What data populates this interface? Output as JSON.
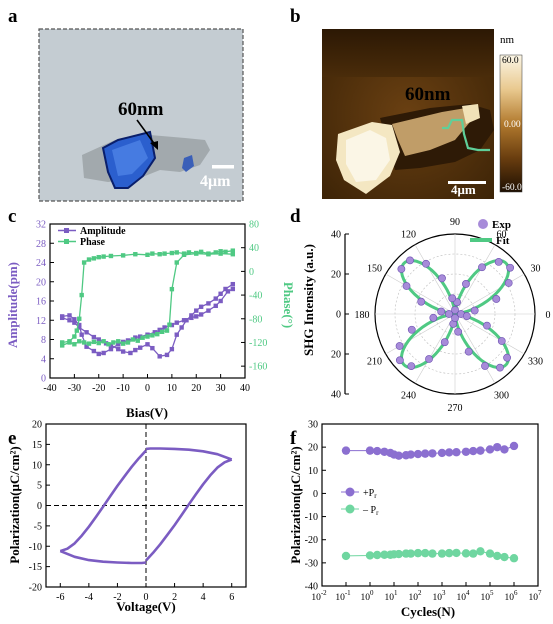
{
  "panels": {
    "a": {
      "letter": "a",
      "annotation": "60nm",
      "scale_bar": "4μm",
      "colors": {
        "background": "#c4ccd2",
        "flake": "#2b5fce",
        "flake_edge": "#0a1f6b",
        "substrate_flake": "#9ea5a8"
      }
    },
    "b": {
      "letter": "b",
      "annotation": "60nm",
      "scale_bar": "4μm",
      "colorbar": {
        "unit": "nm",
        "ticks": [
          "60.0",
          "0.00",
          "-60.0"
        ]
      },
      "colors": {
        "profile": "#5fcf99",
        "dark": "#3a2206",
        "bright": "#f7eed0",
        "mid": "#b07a32"
      }
    },
    "c": {
      "letter": "c",
      "chart_data": {
        "type": "scatter",
        "xlabel": "Bias(V)",
        "ylabel_left": "Amplitude(pm)",
        "ylabel_right": "Phase(°)",
        "xlim": [
          -40,
          40
        ],
        "ylim_left": [
          0,
          32
        ],
        "ylim_right": [
          -180,
          80
        ],
        "xticks": [
          "-40",
          "-30",
          "-20",
          "-10",
          "0",
          "10",
          "20",
          "30",
          "40"
        ],
        "yticks_left": [
          "0",
          "4",
          "8",
          "12",
          "16",
          "20",
          "24",
          "28",
          "32"
        ],
        "yticks_right": [
          "-160",
          "-120",
          "-80",
          "-40",
          "0",
          "40",
          "80"
        ],
        "legend": [
          {
            "name": "Amplitude",
            "color": "#7b5cc2"
          },
          {
            "name": "Phase",
            "color": "#4fc983"
          }
        ],
        "series": [
          {
            "name": "Amplitude",
            "axis": "left",
            "color": "#7b5cc2",
            "x": [
              -35,
              -32,
              -30,
              -28,
              -25,
              -22,
              -20,
              -17,
              -15,
              -12,
              -10,
              -7,
              -5,
              -3,
              0,
              2,
              5,
              8,
              10,
              12,
              14,
              16,
              18,
              20,
              22,
              25,
              28,
              30,
              32,
              35
            ],
            "y": [
              12.5,
              12,
              11.5,
              10.5,
              9.5,
              8.5,
              8,
              7.2,
              6.8,
              6,
              5.5,
              5.2,
              5.8,
              6.3,
              7,
              6.2,
              4.5,
              4.8,
              6,
              9,
              10.5,
              12,
              13,
              14,
              14.8,
              15.5,
              16.5,
              17.5,
              18.5,
              19.5
            ]
          },
          {
            "name": "Amplitude",
            "axis": "left",
            "color": "#7b5cc2",
            "x": [
              35,
              33,
              30,
              28,
              25,
              22,
              20,
              18,
              15,
              12,
              10,
              7,
              5,
              3,
              0,
              -3,
              -5,
              -8,
              -10,
              -12,
              -15,
              -18,
              -20,
              -22,
              -25,
              -27,
              -28,
              -30,
              -32,
              -35
            ],
            "y": [
              18.5,
              18,
              16,
              15,
              14,
              13.2,
              12.8,
              12.5,
              12,
              11.5,
              11,
              10.5,
              10,
              9.5,
              9,
              8.6,
              8.4,
              7.8,
              7.5,
              7,
              6,
              5.2,
              5,
              5.6,
              6.5,
              9,
              11,
              12.2,
              13,
              12.8
            ]
          },
          {
            "name": "Phase",
            "axis": "right",
            "color": "#4fc983",
            "x": [
              -35,
              -32,
              -30,
              -28,
              -26,
              -24,
              -22,
              -20,
              -18,
              -16,
              -14,
              -12,
              -10,
              -8,
              -6,
              -4,
              -2,
              0,
              2,
              4,
              6,
              8,
              9,
              10,
              12,
              15,
              20,
              25,
              30,
              35
            ],
            "y": [
              -125,
              -120,
              -123,
              -118,
              -120,
              -122,
              -119,
              -121,
              -118,
              -123,
              -120,
              -118,
              -122,
              -120,
              -115,
              -117,
              -112,
              -110,
              -108,
              -106,
              -102,
              -100,
              -90,
              -30,
              15,
              28,
              30,
              29,
              30,
              29
            ]
          },
          {
            "name": "Phase",
            "axis": "right",
            "color": "#4fc983",
            "x": [
              35,
              32,
              30,
              28,
              25,
              22,
              20,
              17,
              15,
              12,
              10,
              7,
              5,
              2,
              0,
              -5,
              -10,
              -15,
              -18,
              -20,
              -22,
              -24,
              -26,
              -27,
              -28,
              -29,
              -30,
              -32,
              -35
            ],
            "y": [
              35,
              33,
              34,
              32,
              30,
              33,
              31,
              32,
              30,
              32,
              31,
              30,
              29,
              30,
              28,
              29,
              27,
              26,
              25,
              24,
              22,
              20,
              15,
              -40,
              -80,
              -100,
              -110,
              -118,
              -120
            ]
          }
        ]
      }
    },
    "d": {
      "letter": "d",
      "chart_data": {
        "type": "polar",
        "ylabel": "SHG Intensity (a.u.)",
        "rlim": [
          0,
          40
        ],
        "rticks": [
          "40",
          "20",
          "0",
          "20",
          "40"
        ],
        "angle_ticks": [
          "0",
          "30",
          "60",
          "90",
          "120",
          "150",
          "180",
          "210",
          "240",
          "270",
          "300",
          "330"
        ],
        "legend": [
          {
            "name": "Exp",
            "color": "#a78bd9"
          },
          {
            "name": "Fit",
            "color": "#4fc983"
          }
        ],
        "lobes_deg": [
          45,
          135,
          225,
          315
        ],
        "peak_intensity": 36,
        "exp_angles_deg": [
          0,
          10,
          20,
          30,
          40,
          50,
          60,
          70,
          80,
          90,
          100,
          110,
          120,
          130,
          140,
          150,
          160,
          170,
          180,
          190,
          200,
          210,
          220,
          230,
          240,
          250,
          260,
          270,
          280,
          290,
          300,
          310,
          320,
          330,
          340,
          350
        ],
        "exp_intensity": [
          3,
          10,
          22,
          31,
          36,
          34,
          27,
          16,
          6,
          2,
          8,
          19,
          29,
          35,
          35,
          28,
          18,
          7,
          3,
          11,
          23,
          32,
          36,
          34,
          26,
          15,
          5,
          2,
          9,
          20,
          30,
          35,
          34,
          27,
          17,
          6
        ]
      }
    },
    "e": {
      "letter": "e",
      "chart_data": {
        "type": "line",
        "xlabel": "Voltage(V)",
        "ylabel": "Polarization(μC/cm²)",
        "xlim": [
          -7,
          7
        ],
        "ylim": [
          -20,
          20
        ],
        "xticks": [
          "-6",
          "-4",
          "-2",
          "0",
          "2",
          "4",
          "6"
        ],
        "yticks": [
          "-20",
          "-15",
          "-10",
          "-5",
          "0",
          "5",
          "10",
          "15",
          "20"
        ],
        "color": "#7b5cc2",
        "series": [
          {
            "name": "",
            "x": [
              -6,
              -5,
              -4,
              -3,
              -2,
              -1,
              -0.3,
              0
            ],
            "y": [
              -11.2,
              -12.6,
              -13.4,
              -13.8,
              -14,
              -14.1,
              -14.1,
              -14
            ]
          },
          {
            "name": "",
            "x": [
              0,
              0.5,
              1,
              1.5,
              2,
              2.5,
              3,
              3.5,
              4,
              4.5,
              5,
              5.5,
              6
            ],
            "y": [
              -13.5,
              -11.6,
              -9.5,
              -7.2,
              -4.8,
              -2.3,
              0.3,
              2.8,
              5.2,
              7.4,
              9.3,
              10.6,
              11.3
            ]
          },
          {
            "name": "",
            "x": [
              6,
              5,
              4,
              3,
              2,
              1,
              0.3,
              0
            ],
            "y": [
              11.3,
              12.6,
              13.3,
              13.7,
              13.9,
              14,
              14,
              13.9
            ]
          },
          {
            "name": "",
            "x": [
              0,
              -0.5,
              -1,
              -1.5,
              -2,
              -2.5,
              -3,
              -3.5,
              -4,
              -4.5,
              -5,
              -5.5,
              -6
            ],
            "y": [
              13.5,
              11.6,
              9.5,
              7.2,
              4.8,
              2.3,
              -0.3,
              -2.8,
              -5.2,
              -7.4,
              -9.3,
              -10.6,
              -11.2
            ]
          }
        ]
      }
    },
    "f": {
      "letter": "f",
      "chart_data": {
        "type": "scatter",
        "xlabel": "Cycles(N)",
        "ylabel": "Polarization(μC/cm²)",
        "xscale": "log",
        "xlim_exp": [
          -2,
          7
        ],
        "ylim": [
          -40,
          30
        ],
        "xtick_exponents": [
          "-2",
          "-1",
          "0",
          "1",
          "2",
          "3",
          "4",
          "5",
          "6",
          "7"
        ],
        "xtick_base": "10",
        "yticks": [
          "-40",
          "-30",
          "-20",
          "-10",
          "0",
          "10",
          "20",
          "30"
        ],
        "legend": [
          {
            "name": "+P",
            "sub": "r",
            "color": "#8b6fd0"
          },
          {
            "name": "– P",
            "sub": "r",
            "color": "#6fd6a0"
          }
        ],
        "series": [
          {
            "name": "+Pr",
            "color": "#8b6fd0",
            "log_x": [
              -1,
              0,
              0.3,
              0.6,
              0.85,
              1,
              1.2,
              1.5,
              1.7,
              2,
              2.3,
              2.6,
              3,
              3.3,
              3.6,
              4,
              4.3,
              4.6,
              5,
              5.3,
              5.6,
              6
            ],
            "y": [
              18.5,
              18.5,
              18.3,
              18,
              17.5,
              16.8,
              16.3,
              16.5,
              16.8,
              17,
              17.2,
              17.3,
              17.5,
              17.7,
              17.8,
              18,
              18.3,
              18.5,
              19,
              20,
              19,
              20.5
            ]
          },
          {
            "name": "-Pr",
            "color": "#6fd6a0",
            "log_x": [
              -1,
              0,
              0.3,
              0.6,
              0.85,
              1,
              1.2,
              1.5,
              1.7,
              2,
              2.3,
              2.6,
              3,
              3.3,
              3.6,
              4,
              4.3,
              4.6,
              5,
              5.3,
              5.6,
              6
            ],
            "y": [
              -27,
              -26.8,
              -26.6,
              -26.5,
              -26.5,
              -26.3,
              -26.2,
              -26,
              -26,
              -25.8,
              -25.8,
              -26,
              -26,
              -25.8,
              -25.7,
              -25.9,
              -26,
              -25,
              -26,
              -27,
              -27.5,
              -28
            ]
          }
        ]
      }
    }
  }
}
